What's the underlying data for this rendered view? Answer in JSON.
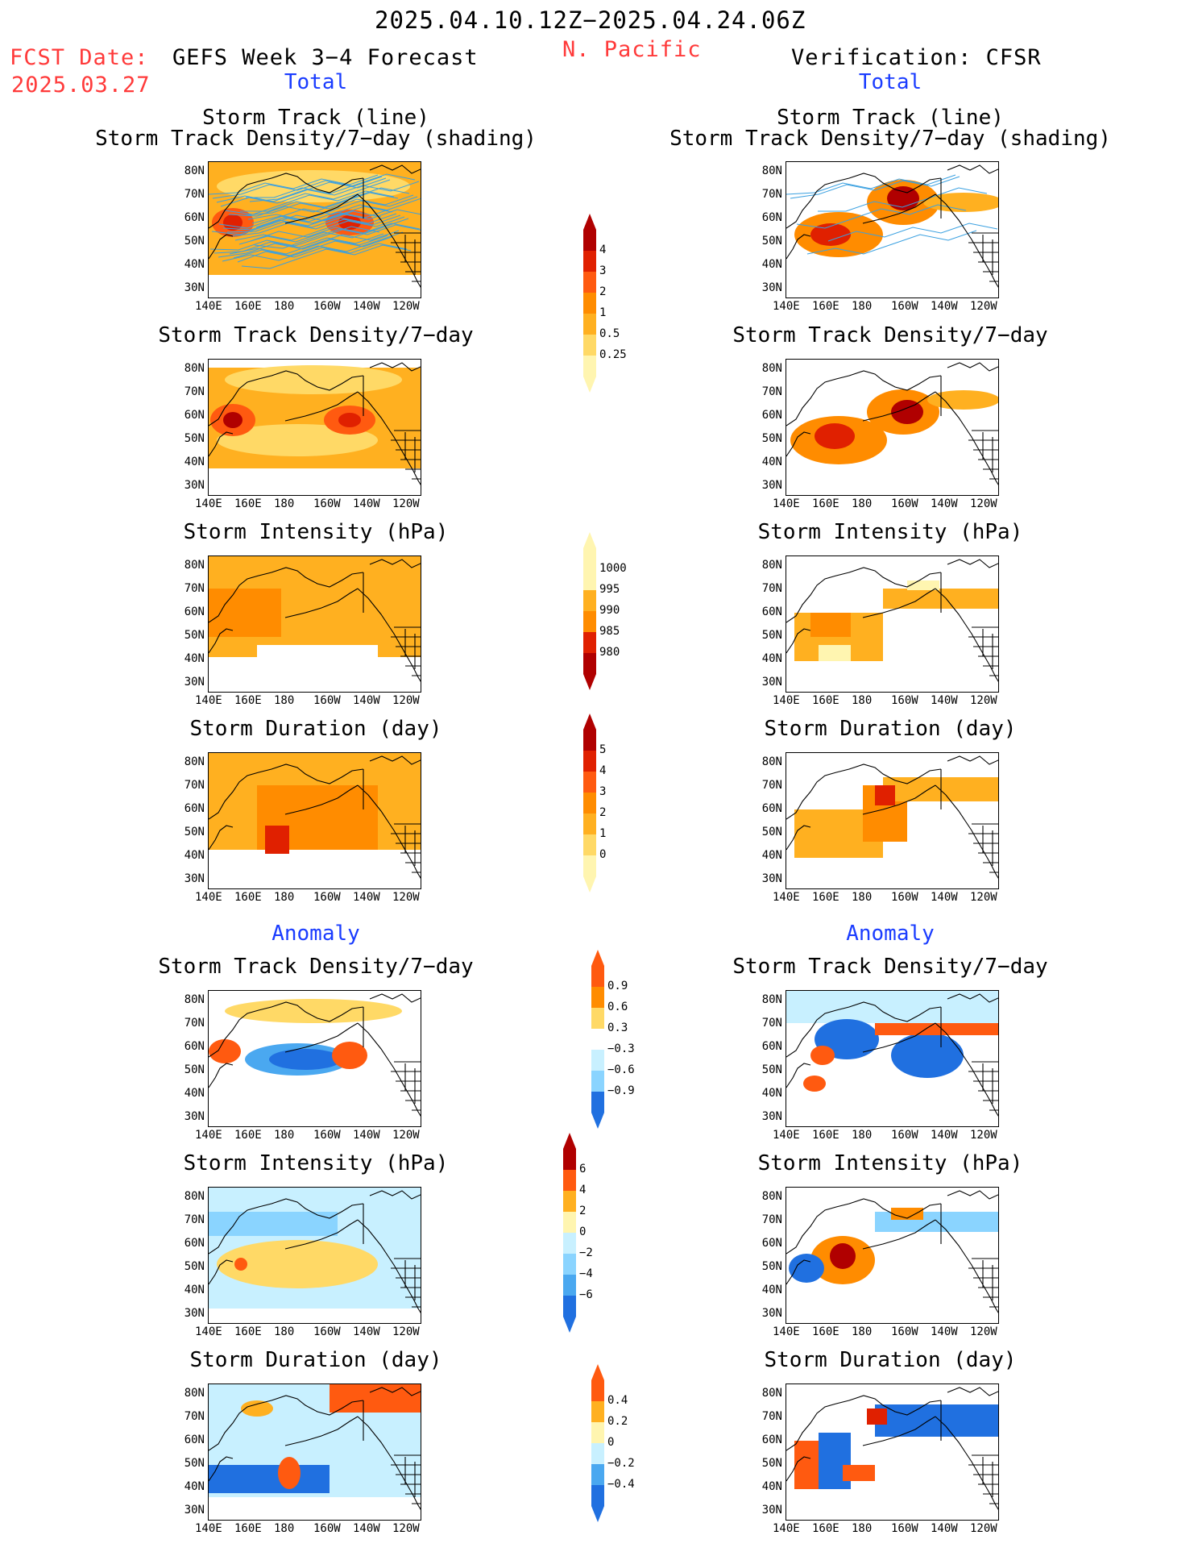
{
  "header": {
    "date_range": "2025.04.10.12Z−2025.04.24.06Z",
    "region": "N. Pacific",
    "fcst_label": "FCST Date:",
    "fcst_date": "2025.03.27",
    "left_title": "GEFS Week 3−4 Forecast",
    "right_title": "Verification: CFSR"
  },
  "sections": {
    "total": "Total",
    "anomaly": "Anomaly"
  },
  "panel_titles": {
    "track_line": "Storm Track (line)",
    "track_shading": "Storm Track Density/7−day (shading)",
    "density": "Storm Track Density/7−day",
    "intensity": "Storm Intensity (hPa)",
    "duration": "Storm Duration (day)"
  },
  "axes": {
    "y_ticks": [
      "80N",
      "70N",
      "60N",
      "50N",
      "40N",
      "30N"
    ],
    "x_ticks": [
      "140E",
      "160E",
      "180",
      "160W",
      "140W",
      "120W"
    ]
  },
  "colorbars": {
    "density_total": [
      "4",
      "3",
      "2",
      "1",
      "0.5",
      "0.25"
    ],
    "intensity_total": [
      "1000",
      "995",
      "990",
      "985",
      "980"
    ],
    "duration_total": [
      "5",
      "4",
      "3",
      "2",
      "1",
      "0"
    ],
    "density_anom": [
      "0.9",
      "0.6",
      "0.3",
      "−0.3",
      "−0.6",
      "−0.9"
    ],
    "intensity_anom": [
      "6",
      "4",
      "2",
      "0",
      "−2",
      "−4",
      "−6"
    ],
    "duration_anom": [
      "0.4",
      "0.2",
      "0",
      "−0.2",
      "−0.4"
    ]
  },
  "colors": {
    "warm": [
      "#fff5b0",
      "#ffd966",
      "#ffb020",
      "#ff8c00",
      "#ff5a10",
      "#e02000",
      "#b00000"
    ],
    "cool": [
      "#c8f0ff",
      "#8ad4ff",
      "#4aa8f0",
      "#2070e0",
      "#1048c0"
    ],
    "track_line": "#3aa0e0"
  }
}
